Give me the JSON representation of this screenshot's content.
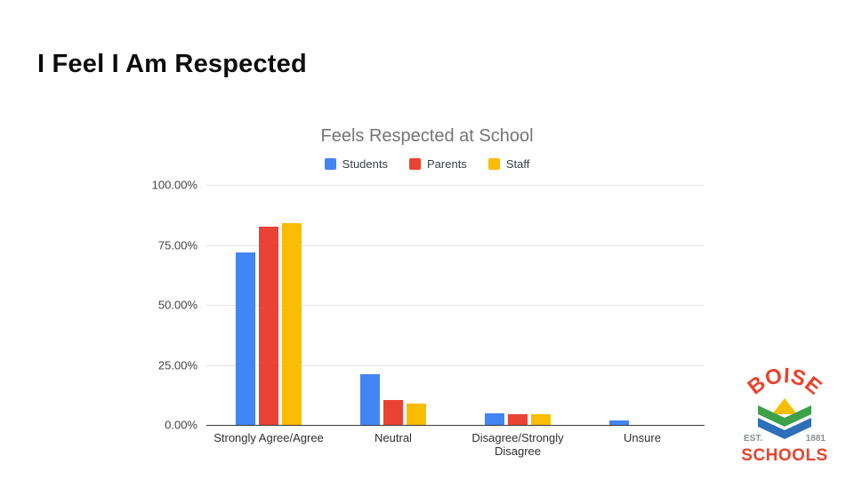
{
  "slide": {
    "title": "I Feel I Am Respected"
  },
  "chart_data": {
    "type": "bar",
    "title": "Feels Respected at School",
    "categories": [
      "Strongly Agree/Agree",
      "Neutral",
      "Disagree/Strongly Disagree",
      "Unsure"
    ],
    "series": [
      {
        "name": "Students",
        "color": "#4285F4",
        "values": [
          72,
          21,
          5,
          2
        ]
      },
      {
        "name": "Parents",
        "color": "#EA4335",
        "values": [
          82.5,
          10.5,
          4.5,
          0
        ]
      },
      {
        "name": "Staff",
        "color": "#FBBC04",
        "values": [
          84,
          9,
          4.5,
          0
        ]
      }
    ],
    "y_ticks": [
      "100.00%",
      "75.00%",
      "50.00%",
      "25.00%",
      "0.00%"
    ],
    "ylim": [
      0,
      100
    ],
    "legend_position": "top",
    "grid": true
  },
  "logo": {
    "arc_text": "BOISE",
    "est_label": "EST.",
    "year": "1881",
    "bottom_text": "SCHOOLS",
    "colors": {
      "red": "#E8432D",
      "green": "#3FA04A",
      "blue": "#2D6FB8",
      "yellow": "#F6BE00",
      "gray": "#8a8f94"
    }
  }
}
